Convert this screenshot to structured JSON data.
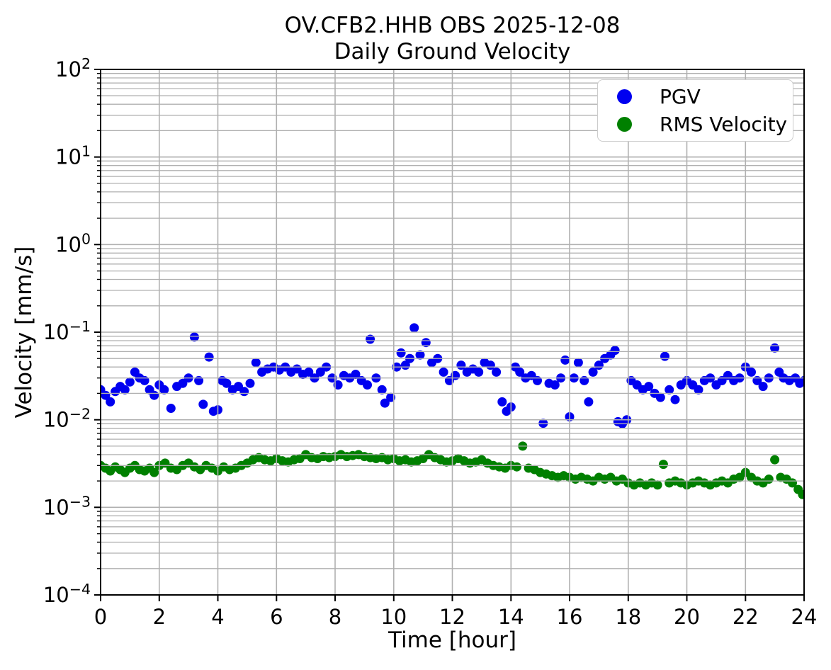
{
  "chart_data": {
    "type": "scatter",
    "title": "OV.CFB2.HHB OBS 2025-12-08\nDaily Ground Velocity",
    "title_line1": "OV.CFB2.HHB OBS 2025-12-08",
    "title_line2": "Daily Ground Velocity",
    "xlabel": "Time [hour]",
    "ylabel": "Velocity [mm/s]",
    "x_axis": {
      "min": 0,
      "max": 24,
      "ticks": [
        0,
        2,
        4,
        6,
        8,
        10,
        12,
        14,
        16,
        18,
        20,
        22,
        24
      ]
    },
    "y_axis": {
      "scale": "log",
      "min": 0.0001,
      "max": 100,
      "tick_exponents": [
        2,
        1,
        0,
        -1,
        -2,
        -3,
        -4
      ],
      "minor_gridlines": true
    },
    "grid": {
      "major": true,
      "minor": true,
      "color": "#b0b0b0",
      "grid_above_points": true
    },
    "legend": {
      "position": "upper right",
      "entries": [
        {
          "label": "PGV",
          "color": "#0000f0"
        },
        {
          "label": "RMS Velocity",
          "color": "#008000"
        }
      ]
    },
    "series": [
      {
        "name": "PGV",
        "color": "#0000f0",
        "points": [
          [
            0.0,
            0.022
          ],
          [
            0.17,
            0.019
          ],
          [
            0.33,
            0.016
          ],
          [
            0.5,
            0.021
          ],
          [
            0.67,
            0.024
          ],
          [
            0.83,
            0.022
          ],
          [
            1.0,
            0.027
          ],
          [
            1.17,
            0.035
          ],
          [
            1.33,
            0.03
          ],
          [
            1.5,
            0.028
          ],
          [
            1.67,
            0.022
          ],
          [
            1.83,
            0.019
          ],
          [
            2.0,
            0.025
          ],
          [
            2.17,
            0.022
          ],
          [
            2.4,
            0.0135
          ],
          [
            2.6,
            0.024
          ],
          [
            2.8,
            0.026
          ],
          [
            3.0,
            0.03
          ],
          [
            3.2,
            0.088
          ],
          [
            3.35,
            0.028
          ],
          [
            3.5,
            0.015
          ],
          [
            3.7,
            0.052
          ],
          [
            3.85,
            0.0125
          ],
          [
            4.0,
            0.013
          ],
          [
            4.15,
            0.028
          ],
          [
            4.3,
            0.026
          ],
          [
            4.5,
            0.022
          ],
          [
            4.7,
            0.024
          ],
          [
            4.9,
            0.021
          ],
          [
            5.1,
            0.026
          ],
          [
            5.3,
            0.045
          ],
          [
            5.5,
            0.035
          ],
          [
            5.7,
            0.038
          ],
          [
            5.9,
            0.04
          ],
          [
            6.1,
            0.037
          ],
          [
            6.3,
            0.04
          ],
          [
            6.5,
            0.035
          ],
          [
            6.7,
            0.038
          ],
          [
            6.9,
            0.033
          ],
          [
            7.1,
            0.035
          ],
          [
            7.3,
            0.03
          ],
          [
            7.5,
            0.035
          ],
          [
            7.7,
            0.04
          ],
          [
            7.9,
            0.03
          ],
          [
            8.1,
            0.025
          ],
          [
            8.3,
            0.032
          ],
          [
            8.5,
            0.03
          ],
          [
            8.7,
            0.033
          ],
          [
            8.9,
            0.028
          ],
          [
            9.1,
            0.025
          ],
          [
            9.2,
            0.083
          ],
          [
            9.4,
            0.03
          ],
          [
            9.6,
            0.022
          ],
          [
            9.7,
            0.0155
          ],
          [
            9.9,
            0.018
          ],
          [
            10.1,
            0.04
          ],
          [
            10.25,
            0.058
          ],
          [
            10.4,
            0.042
          ],
          [
            10.55,
            0.05
          ],
          [
            10.7,
            0.112
          ],
          [
            10.9,
            0.055
          ],
          [
            11.1,
            0.076
          ],
          [
            11.3,
            0.045
          ],
          [
            11.5,
            0.05
          ],
          [
            11.7,
            0.035
          ],
          [
            11.9,
            0.028
          ],
          [
            12.1,
            0.032
          ],
          [
            12.3,
            0.042
          ],
          [
            12.5,
            0.035
          ],
          [
            12.7,
            0.038
          ],
          [
            12.9,
            0.035
          ],
          [
            13.1,
            0.045
          ],
          [
            13.3,
            0.042
          ],
          [
            13.5,
            0.035
          ],
          [
            13.7,
            0.016
          ],
          [
            13.85,
            0.0125
          ],
          [
            14.0,
            0.014
          ],
          [
            14.15,
            0.04
          ],
          [
            14.3,
            0.035
          ],
          [
            14.5,
            0.03
          ],
          [
            14.7,
            0.032
          ],
          [
            14.9,
            0.028
          ],
          [
            15.1,
            0.0091
          ],
          [
            15.3,
            0.026
          ],
          [
            15.5,
            0.025
          ],
          [
            15.7,
            0.03
          ],
          [
            15.85,
            0.048
          ],
          [
            16.0,
            0.0108
          ],
          [
            16.15,
            0.03
          ],
          [
            16.3,
            0.045
          ],
          [
            16.5,
            0.028
          ],
          [
            16.65,
            0.016
          ],
          [
            16.8,
            0.035
          ],
          [
            17.0,
            0.042
          ],
          [
            17.2,
            0.05
          ],
          [
            17.4,
            0.055
          ],
          [
            17.55,
            0.062
          ],
          [
            17.65,
            0.0095
          ],
          [
            17.8,
            0.009
          ],
          [
            17.95,
            0.01
          ],
          [
            18.1,
            0.028
          ],
          [
            18.3,
            0.025
          ],
          [
            18.5,
            0.022
          ],
          [
            18.7,
            0.024
          ],
          [
            18.9,
            0.02
          ],
          [
            19.1,
            0.018
          ],
          [
            19.25,
            0.053
          ],
          [
            19.4,
            0.022
          ],
          [
            19.6,
            0.017
          ],
          [
            19.8,
            0.025
          ],
          [
            20.0,
            0.028
          ],
          [
            20.2,
            0.025
          ],
          [
            20.4,
            0.022
          ],
          [
            20.6,
            0.028
          ],
          [
            20.8,
            0.03
          ],
          [
            21.0,
            0.025
          ],
          [
            21.2,
            0.028
          ],
          [
            21.4,
            0.032
          ],
          [
            21.6,
            0.028
          ],
          [
            21.8,
            0.03
          ],
          [
            22.0,
            0.04
          ],
          [
            22.2,
            0.035
          ],
          [
            22.4,
            0.028
          ],
          [
            22.6,
            0.024
          ],
          [
            22.8,
            0.03
          ],
          [
            23.0,
            0.066
          ],
          [
            23.15,
            0.035
          ],
          [
            23.3,
            0.03
          ],
          [
            23.5,
            0.028
          ],
          [
            23.7,
            0.03
          ],
          [
            23.85,
            0.026
          ],
          [
            24.0,
            0.028
          ]
        ]
      },
      {
        "name": "RMS Velocity",
        "color": "#008000",
        "points": [
          [
            0.0,
            0.003
          ],
          [
            0.17,
            0.0028
          ],
          [
            0.33,
            0.0026
          ],
          [
            0.5,
            0.0029
          ],
          [
            0.67,
            0.0027
          ],
          [
            0.83,
            0.0025
          ],
          [
            1.0,
            0.0028
          ],
          [
            1.17,
            0.003
          ],
          [
            1.33,
            0.0027
          ],
          [
            1.5,
            0.0026
          ],
          [
            1.67,
            0.0028
          ],
          [
            1.83,
            0.0025
          ],
          [
            2.0,
            0.003
          ],
          [
            2.2,
            0.0032
          ],
          [
            2.4,
            0.0028
          ],
          [
            2.6,
            0.0027
          ],
          [
            2.8,
            0.003
          ],
          [
            3.0,
            0.0032
          ],
          [
            3.2,
            0.0029
          ],
          [
            3.4,
            0.0027
          ],
          [
            3.6,
            0.003
          ],
          [
            3.8,
            0.0028
          ],
          [
            4.0,
            0.0026
          ],
          [
            4.2,
            0.0029
          ],
          [
            4.4,
            0.0027
          ],
          [
            4.6,
            0.0028
          ],
          [
            4.8,
            0.003
          ],
          [
            5.0,
            0.0032
          ],
          [
            5.2,
            0.0035
          ],
          [
            5.4,
            0.0037
          ],
          [
            5.6,
            0.0035
          ],
          [
            5.8,
            0.0034
          ],
          [
            6.0,
            0.0036
          ],
          [
            6.2,
            0.0034
          ],
          [
            6.4,
            0.0033
          ],
          [
            6.6,
            0.0035
          ],
          [
            6.8,
            0.0036
          ],
          [
            7.0,
            0.004
          ],
          [
            7.2,
            0.0037
          ],
          [
            7.4,
            0.0036
          ],
          [
            7.6,
            0.0038
          ],
          [
            7.8,
            0.0037
          ],
          [
            8.0,
            0.0038
          ],
          [
            8.2,
            0.004
          ],
          [
            8.4,
            0.0038
          ],
          [
            8.6,
            0.0039
          ],
          [
            8.8,
            0.004
          ],
          [
            9.0,
            0.0038
          ],
          [
            9.2,
            0.0037
          ],
          [
            9.4,
            0.0036
          ],
          [
            9.6,
            0.0037
          ],
          [
            9.8,
            0.0035
          ],
          [
            10.0,
            0.0036
          ],
          [
            10.2,
            0.0034
          ],
          [
            10.4,
            0.0035
          ],
          [
            10.6,
            0.0033
          ],
          [
            10.8,
            0.0034
          ],
          [
            11.0,
            0.0036
          ],
          [
            11.2,
            0.004
          ],
          [
            11.4,
            0.0037
          ],
          [
            11.6,
            0.0035
          ],
          [
            11.8,
            0.0033
          ],
          [
            12.0,
            0.0034
          ],
          [
            12.2,
            0.0036
          ],
          [
            12.4,
            0.0034
          ],
          [
            12.6,
            0.0032
          ],
          [
            12.8,
            0.0033
          ],
          [
            13.0,
            0.0035
          ],
          [
            13.2,
            0.0032
          ],
          [
            13.4,
            0.003
          ],
          [
            13.6,
            0.0029
          ],
          [
            13.8,
            0.0028
          ],
          [
            14.0,
            0.003
          ],
          [
            14.2,
            0.0029
          ],
          [
            14.4,
            0.005
          ],
          [
            14.6,
            0.0028
          ],
          [
            14.8,
            0.0027
          ],
          [
            15.0,
            0.0025
          ],
          [
            15.2,
            0.0024
          ],
          [
            15.4,
            0.0023
          ],
          [
            15.6,
            0.0022
          ],
          [
            15.8,
            0.0023
          ],
          [
            16.0,
            0.0022
          ],
          [
            16.2,
            0.0021
          ],
          [
            16.4,
            0.0022
          ],
          [
            16.6,
            0.0021
          ],
          [
            16.8,
            0.002
          ],
          [
            17.0,
            0.0022
          ],
          [
            17.2,
            0.0021
          ],
          [
            17.4,
            0.0022
          ],
          [
            17.6,
            0.002
          ],
          [
            17.8,
            0.0021
          ],
          [
            18.0,
            0.0019
          ],
          [
            18.2,
            0.0018
          ],
          [
            18.4,
            0.0019
          ],
          [
            18.6,
            0.0018
          ],
          [
            18.8,
            0.0019
          ],
          [
            19.0,
            0.0018
          ],
          [
            19.2,
            0.0031
          ],
          [
            19.4,
            0.0019
          ],
          [
            19.6,
            0.002
          ],
          [
            19.8,
            0.0019
          ],
          [
            20.0,
            0.0018
          ],
          [
            20.2,
            0.0019
          ],
          [
            20.4,
            0.002
          ],
          [
            20.6,
            0.0019
          ],
          [
            20.8,
            0.0018
          ],
          [
            21.0,
            0.0019
          ],
          [
            21.2,
            0.002
          ],
          [
            21.4,
            0.0019
          ],
          [
            21.6,
            0.0021
          ],
          [
            21.8,
            0.0022
          ],
          [
            22.0,
            0.0025
          ],
          [
            22.2,
            0.0022
          ],
          [
            22.4,
            0.002
          ],
          [
            22.6,
            0.0019
          ],
          [
            22.8,
            0.0021
          ],
          [
            23.0,
            0.0035
          ],
          [
            23.2,
            0.0022
          ],
          [
            23.4,
            0.0021
          ],
          [
            23.6,
            0.0019
          ],
          [
            23.8,
            0.0016
          ],
          [
            23.95,
            0.0014
          ]
        ]
      }
    ]
  }
}
